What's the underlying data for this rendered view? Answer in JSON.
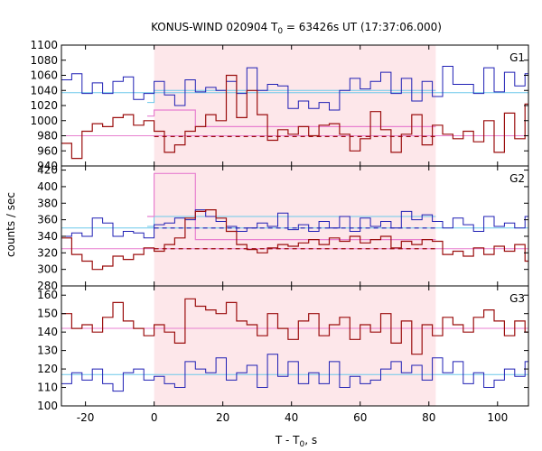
{
  "chart_data": {
    "type": "line",
    "title_main": "KONUS-WIND 020904 T",
    "title_sub": "0",
    "title_rest": " = 63426s UT (17:37:06.000)",
    "xlabel_main": "T - T",
    "xlabel_sub": "0",
    "xlabel_rest": ", s",
    "ylabel": "counts / sec",
    "xlim": [
      -27,
      109
    ],
    "xticks": [
      -20,
      0,
      20,
      40,
      60,
      80,
      100
    ],
    "highlight_x": [
      0,
      82
    ],
    "colors": {
      "blue": "#1f1fb4",
      "red": "#9b0e0e",
      "cyan": "#6cc8ea",
      "pink": "#e87fd0",
      "highlight": "#fde7ea"
    },
    "panels": [
      {
        "label": "G1",
        "ylim": [
          940,
          1100
        ],
        "yticks": [
          940,
          960,
          980,
          1000,
          1020,
          1040,
          1060,
          1080,
          1100
        ],
        "step_start": -27,
        "step_width": 3,
        "blue": [
          1054,
          1062,
          1036,
          1050,
          1036,
          1052,
          1058,
          1028,
          1036,
          1052,
          1034,
          1020,
          1054,
          1038,
          1044,
          1040,
          1052,
          1036,
          1070,
          1040,
          1048,
          1046,
          1016,
          1026,
          1016,
          1024,
          1014,
          1040,
          1056,
          1042,
          1052,
          1064,
          1036,
          1056,
          1026,
          1052,
          1032,
          1072,
          1048,
          1048,
          1036,
          1070,
          1038,
          1064,
          1046,
          1062,
          1040
        ],
        "red": [
          970,
          950,
          986,
          996,
          992,
          1004,
          1008,
          994,
          1000,
          986,
          958,
          968,
          986,
          992,
          1008,
          1000,
          1060,
          1004,
          1040,
          1008,
          974,
          988,
          982,
          992,
          980,
          994,
          996,
          982,
          960,
          976,
          1012,
          988,
          958,
          982,
          1008,
          968,
          994,
          982,
          976,
          986,
          972,
          1000,
          958,
          1010,
          976,
          1022,
          966
        ],
        "blue_level": 1037,
        "red_level": 980,
        "blue_seg": {
          "x": [
            -2,
            0,
            12,
            82
          ],
          "y": [
            1024,
            1040,
            1040,
            1040
          ]
        },
        "pink_seg": {
          "x": [
            -2,
            0,
            12,
            82
          ],
          "y": [
            1006,
            1014,
            992,
            992
          ]
        },
        "red_dash": {
          "x": [
            0,
            82
          ],
          "y": [
            979,
            979
          ]
        }
      },
      {
        "label": "G2",
        "ylim": [
          280,
          425
        ],
        "yticks": [
          280,
          300,
          320,
          340,
          360,
          380,
          400,
          420
        ],
        "step_start": -27,
        "step_width": 3,
        "blue": [
          340,
          344,
          340,
          362,
          356,
          340,
          346,
          344,
          338,
          354,
          356,
          362,
          360,
          372,
          364,
          358,
          352,
          346,
          350,
          356,
          352,
          368,
          348,
          354,
          346,
          358,
          350,
          364,
          346,
          362,
          352,
          358,
          350,
          370,
          360,
          366,
          358,
          350,
          362,
          354,
          346,
          364,
          352,
          356,
          350,
          364,
          340
        ],
        "red": [
          338,
          318,
          310,
          300,
          304,
          316,
          312,
          318,
          326,
          322,
          330,
          338,
          362,
          370,
          372,
          362,
          346,
          330,
          324,
          320,
          326,
          330,
          328,
          332,
          336,
          330,
          338,
          334,
          340,
          332,
          336,
          340,
          326,
          334,
          330,
          336,
          334,
          318,
          322,
          316,
          326,
          318,
          328,
          322,
          330,
          310,
          342
        ],
        "blue_level": 350,
        "red_level": 325,
        "blue_seg": {
          "x": [
            -2,
            0,
            12,
            82
          ],
          "y": [
            352,
            364,
            364,
            364
          ]
        },
        "pink_seg": {
          "x": [
            -2,
            0,
            12,
            82
          ],
          "y": [
            364,
            416,
            336,
            336
          ]
        },
        "blue_dash": {
          "x": [
            0,
            82
          ],
          "y": [
            350,
            350
          ]
        },
        "red_dash": {
          "x": [
            0,
            82
          ],
          "y": [
            325,
            325
          ]
        }
      },
      {
        "label": "G3",
        "ylim": [
          100,
          165
        ],
        "yticks": [
          100,
          110,
          120,
          130,
          140,
          150,
          160
        ],
        "step_start": -27,
        "step_width": 3,
        "blue": [
          112,
          118,
          114,
          120,
          112,
          108,
          118,
          120,
          114,
          116,
          112,
          110,
          124,
          120,
          118,
          126,
          114,
          118,
          122,
          110,
          128,
          116,
          124,
          112,
          118,
          112,
          124,
          110,
          116,
          112,
          114,
          120,
          124,
          118,
          122,
          114,
          126,
          118,
          124,
          112,
          118,
          110,
          114,
          120,
          116,
          124,
          130
        ],
        "red": [
          150,
          142,
          144,
          140,
          148,
          156,
          146,
          142,
          138,
          144,
          140,
          134,
          158,
          154,
          152,
          150,
          156,
          146,
          144,
          138,
          150,
          142,
          136,
          146,
          150,
          138,
          144,
          148,
          136,
          144,
          140,
          150,
          134,
          146,
          128,
          144,
          138,
          148,
          144,
          140,
          148,
          152,
          146,
          138,
          146,
          140,
          136
        ],
        "blue_level": 117,
        "red_level": 142
      }
    ]
  }
}
